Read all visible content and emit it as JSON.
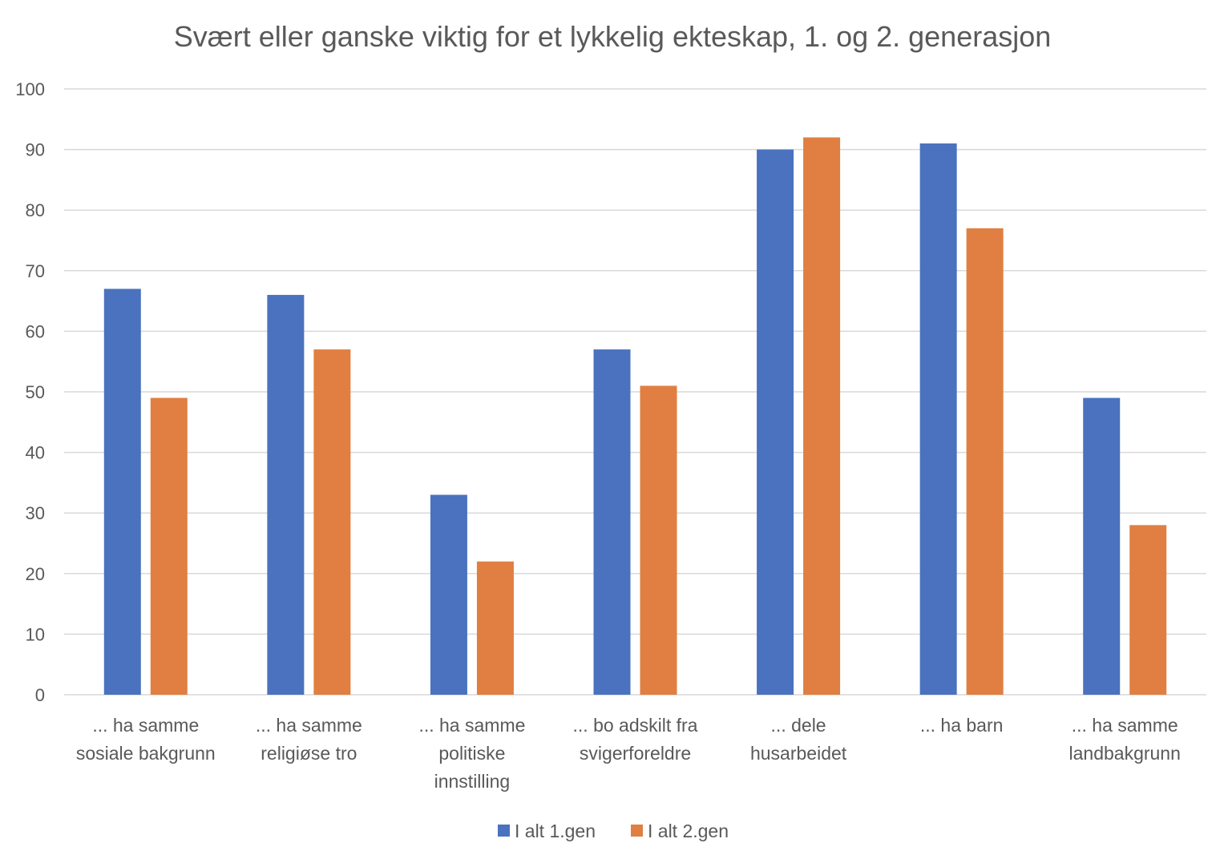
{
  "chart_data": {
    "type": "bar",
    "title": "Svært eller ganske viktig for et lykkelig ekteskap, 1. og 2. generasjon",
    "xlabel": "",
    "ylabel": "",
    "ylim": [
      0,
      100
    ],
    "yticks": [
      "0",
      "10",
      "20",
      "30",
      "40",
      "50",
      "60",
      "70",
      "80",
      "90",
      "100"
    ],
    "grid": true,
    "legend_position": "bottom",
    "categories": [
      [
        "... ha samme",
        "sosiale bakgrunn"
      ],
      [
        "... ha samme",
        "religiøse tro"
      ],
      [
        "... ha samme",
        "politiske",
        "innstilling"
      ],
      [
        "... bo adskilt fra",
        "svigerforeldre"
      ],
      [
        "... dele",
        "husarbeidet"
      ],
      [
        "... ha barn"
      ],
      [
        "... ha samme",
        "landbakgrunn"
      ]
    ],
    "series": [
      {
        "name": "I alt 1.gen",
        "color": "#4A72BE",
        "values": [
          67,
          66,
          33,
          57,
          90,
          91,
          49
        ]
      },
      {
        "name": "I alt 2.gen",
        "color": "#E07F41",
        "values": [
          49,
          57,
          22,
          51,
          92,
          77,
          28
        ]
      }
    ]
  }
}
